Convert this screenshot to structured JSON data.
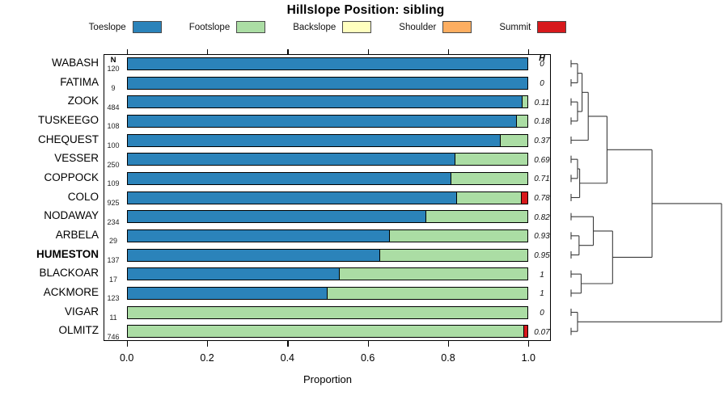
{
  "chart_data": {
    "type": "bar",
    "subtype": "horizontal-stacked-proportion-with-dendrogram",
    "title": "Hillslope Position: sibling",
    "xlabel": "Proportion",
    "xlim": [
      0,
      1
    ],
    "x_ticks": [
      "0.0",
      "0.2",
      "0.4",
      "0.6",
      "0.8",
      "1.0"
    ],
    "x_tick_values": [
      0.0,
      0.2,
      0.4,
      0.6,
      0.8,
      1.0
    ],
    "grid": false,
    "legend_position": "top",
    "n_column_header": "N",
    "h_column_header": "H",
    "categories": [
      "Toeslope",
      "Footslope",
      "Backslope",
      "Shoulder",
      "Summit"
    ],
    "category_colors": {
      "Toeslope": "#2B83BA",
      "Footslope": "#ABDDA4",
      "Backslope": "#FFFFBF",
      "Shoulder": "#FDAE61",
      "Summit": "#D7191C"
    },
    "rows": [
      {
        "name": "WABASH",
        "n": "120",
        "h": "0",
        "bold": false,
        "proportions": {
          "Toeslope": 1.0,
          "Footslope": 0,
          "Backslope": 0,
          "Shoulder": 0,
          "Summit": 0
        }
      },
      {
        "name": "FATIMA",
        "n": "9",
        "h": "0",
        "bold": false,
        "proportions": {
          "Toeslope": 1.0,
          "Footslope": 0,
          "Backslope": 0,
          "Shoulder": 0,
          "Summit": 0
        }
      },
      {
        "name": "ZOOK",
        "n": "484",
        "h": "0.11",
        "bold": false,
        "proportions": {
          "Toeslope": 0.985,
          "Footslope": 0.015,
          "Backslope": 0,
          "Shoulder": 0,
          "Summit": 0
        }
      },
      {
        "name": "TUSKEEGO",
        "n": "108",
        "h": "0.18",
        "bold": false,
        "proportions": {
          "Toeslope": 0.972,
          "Footslope": 0.028,
          "Backslope": 0,
          "Shoulder": 0,
          "Summit": 0
        }
      },
      {
        "name": "CHEQUEST",
        "n": "100",
        "h": "0.37",
        "bold": false,
        "proportions": {
          "Toeslope": 0.93,
          "Footslope": 0.07,
          "Backslope": 0,
          "Shoulder": 0,
          "Summit": 0
        }
      },
      {
        "name": "VESSER",
        "n": "250",
        "h": "0.69",
        "bold": false,
        "proportions": {
          "Toeslope": 0.819,
          "Footslope": 0.181,
          "Backslope": 0,
          "Shoulder": 0,
          "Summit": 0
        }
      },
      {
        "name": "COPPOCK",
        "n": "109",
        "h": "0.71",
        "bold": false,
        "proportions": {
          "Toeslope": 0.808,
          "Footslope": 0.192,
          "Backslope": 0,
          "Shoulder": 0,
          "Summit": 0
        }
      },
      {
        "name": "COLO",
        "n": "925",
        "h": "0.78",
        "bold": false,
        "proportions": {
          "Toeslope": 0.822,
          "Footslope": 0.162,
          "Backslope": 0,
          "Shoulder": 0,
          "Summit": 0.016
        }
      },
      {
        "name": "NODAWAY",
        "n": "234",
        "h": "0.82",
        "bold": false,
        "proportions": {
          "Toeslope": 0.745,
          "Footslope": 0.255,
          "Backslope": 0,
          "Shoulder": 0,
          "Summit": 0
        }
      },
      {
        "name": "ARBELA",
        "n": "29",
        "h": "0.93",
        "bold": false,
        "proportions": {
          "Toeslope": 0.655,
          "Footslope": 0.345,
          "Backslope": 0,
          "Shoulder": 0,
          "Summit": 0
        }
      },
      {
        "name": "HUMESTON",
        "n": "137",
        "h": "0.95",
        "bold": true,
        "proportions": {
          "Toeslope": 0.63,
          "Footslope": 0.37,
          "Backslope": 0,
          "Shoulder": 0,
          "Summit": 0
        }
      },
      {
        "name": "BLACKOAR",
        "n": "17",
        "h": "1",
        "bold": false,
        "proportions": {
          "Toeslope": 0.53,
          "Footslope": 0.47,
          "Backslope": 0,
          "Shoulder": 0,
          "Summit": 0
        }
      },
      {
        "name": "ACKMORE",
        "n": "123",
        "h": "1",
        "bold": false,
        "proportions": {
          "Toeslope": 0.5,
          "Footslope": 0.5,
          "Backslope": 0,
          "Shoulder": 0,
          "Summit": 0
        }
      },
      {
        "name": "VIGAR",
        "n": "11",
        "h": "0",
        "bold": false,
        "proportions": {
          "Toeslope": 0,
          "Footslope": 1.0,
          "Backslope": 0,
          "Shoulder": 0,
          "Summit": 0
        }
      },
      {
        "name": "OLMITZ",
        "n": "746",
        "h": "0.07",
        "bold": false,
        "proportions": {
          "Toeslope": 0,
          "Footslope": 0.99,
          "Backslope": 0,
          "Shoulder": 0,
          "Summit": 0.01
        }
      }
    ],
    "dendrogram": {
      "h": 1.0,
      "children": [
        {
          "h": 0.538,
          "children": [
            {
              "h": 0.239,
              "children": [
                {
                  "h": 0.114,
                  "children": [
                    {
                      "h": 0.073,
                      "children": [
                        {
                          "h": 0.043,
                          "children": [
                            {
                              "leaf": "WABASH"
                            },
                            {
                              "leaf": "FATIMA"
                            }
                          ]
                        },
                        {
                          "h": 0.043,
                          "children": [
                            {
                              "leaf": "ZOOK"
                            },
                            {
                              "leaf": "TUSKEEGO"
                            }
                          ]
                        }
                      ]
                    },
                    {
                      "leaf": "CHEQUEST"
                    }
                  ]
                },
                {
                  "h": 0.057,
                  "children": [
                    {
                      "h": 0.043,
                      "children": [
                        {
                          "leaf": "VESSER"
                        },
                        {
                          "leaf": "COPPOCK"
                        }
                      ]
                    },
                    {
                      "leaf": "COLO"
                    }
                  ]
                }
              ]
            },
            {
              "h": 0.276,
              "children": [
                {
                  "h": 0.148,
                  "children": [
                    {
                      "leaf": "NODAWAY"
                    },
                    {
                      "h": 0.053,
                      "children": [
                        {
                          "leaf": "ARBELA"
                        },
                        {
                          "leaf": "HUMESTON"
                        }
                      ]
                    }
                  ]
                },
                {
                  "h": 0.067,
                  "children": [
                    {
                      "leaf": "BLACKOAR"
                    },
                    {
                      "leaf": "ACKMORE"
                    }
                  ]
                }
              ]
            }
          ]
        },
        {
          "h": 0.043,
          "children": [
            {
              "leaf": "VIGAR"
            },
            {
              "leaf": "OLMITZ"
            }
          ]
        }
      ]
    }
  }
}
